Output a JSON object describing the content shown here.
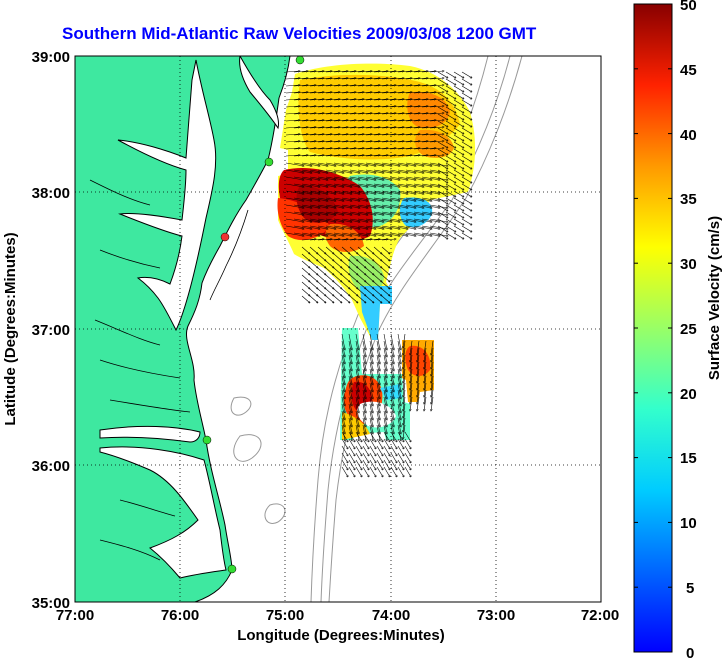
{
  "title": "Southern Mid-Atlantic Raw Velocities 2009/03/08 1200 GMT",
  "map": {
    "x_label": "Longitude (Degrees:Minutes)",
    "y_label": "Latitude (Degrees:Minutes)",
    "x_ticks": [
      "77:00",
      "76:00",
      "75:00",
      "74:00",
      "73:00",
      "72:00"
    ],
    "y_ticks": [
      "39:00",
      "38:00",
      "37:00",
      "36:00",
      "35:00"
    ],
    "land_color": "#3ee8a0",
    "coast_color": "#000000",
    "isobath_color": "#888888",
    "grid_style": "dotted"
  },
  "colorbar": {
    "label": "Surface Velocity (cm/s)",
    "ticks": [
      "50",
      "45",
      "40",
      "35",
      "30",
      "25",
      "20",
      "15",
      "10",
      "5",
      "0"
    ],
    "colormap": "jet"
  },
  "stations": [
    {
      "name": "north-station",
      "color": "#33dd33"
    },
    {
      "name": "cape-henlopen-station",
      "color": "#33dd33"
    },
    {
      "name": "wallops-station",
      "color": "#ee3333"
    },
    {
      "name": "duck-station",
      "color": "#33dd33"
    },
    {
      "name": "hatteras-station",
      "color": "#33dd33"
    }
  ]
}
